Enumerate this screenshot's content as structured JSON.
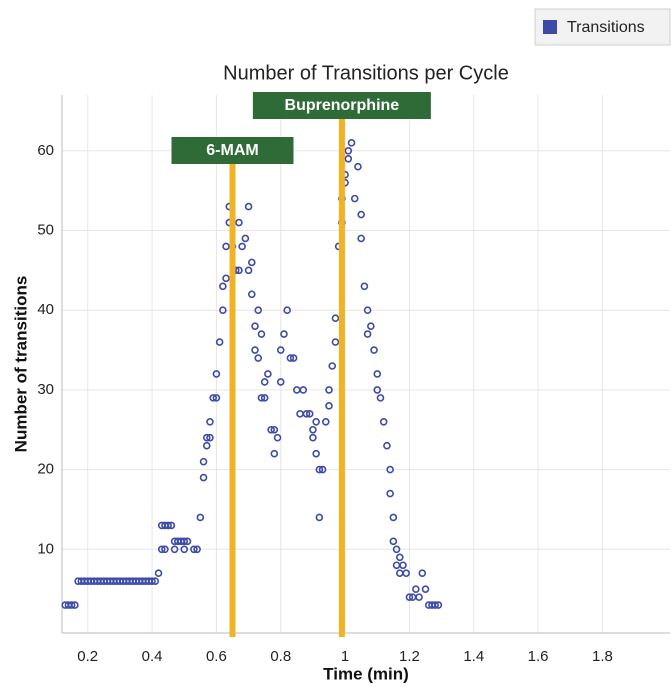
{
  "chart_data": {
    "type": "scatter",
    "title": "Number of Transitions per Cycle",
    "x_label": "Time (min)",
    "y_label": "Number of transitions",
    "x": [
      0.13,
      0.14,
      0.15,
      0.16,
      0.17,
      0.18,
      0.19,
      0.2,
      0.21,
      0.22,
      0.23,
      0.24,
      0.25,
      0.26,
      0.27,
      0.28,
      0.29,
      0.3,
      0.31,
      0.32,
      0.33,
      0.34,
      0.35,
      0.36,
      0.37,
      0.38,
      0.39,
      0.4,
      0.41,
      0.42,
      0.43,
      0.44,
      0.45,
      0.46,
      0.43,
      0.44,
      0.47,
      0.48,
      0.49,
      0.5,
      0.51,
      0.47,
      0.5,
      0.53,
      0.54,
      0.55,
      0.56,
      0.56,
      0.57,
      0.57,
      0.58,
      0.58,
      0.59,
      0.6,
      0.6,
      0.61,
      0.62,
      0.62,
      0.63,
      0.63,
      0.64,
      0.64,
      0.65,
      0.66,
      0.67,
      0.67,
      0.68,
      0.69,
      0.7,
      0.7,
      0.71,
      0.71,
      0.72,
      0.72,
      0.73,
      0.73,
      0.74,
      0.74,
      0.75,
      0.75,
      0.76,
      0.77,
      0.78,
      0.78,
      0.79,
      0.8,
      0.8,
      0.81,
      0.82,
      0.83,
      0.84,
      0.85,
      0.86,
      0.87,
      0.88,
      0.89,
      0.9,
      0.9,
      0.91,
      0.91,
      0.92,
      0.92,
      0.93,
      0.94,
      0.95,
      0.95,
      0.96,
      0.97,
      0.97,
      0.98,
      0.99,
      0.99,
      1.0,
      1.0,
      1.01,
      1.02,
      1.01,
      1.03,
      1.04,
      1.05,
      1.05,
      1.06,
      1.07,
      1.07,
      1.08,
      1.09,
      1.1,
      1.1,
      1.11,
      1.12,
      1.13,
      1.14,
      1.14,
      1.15,
      1.15,
      1.16,
      1.16,
      1.17,
      1.17,
      1.18,
      1.19,
      1.2,
      1.21,
      1.22,
      1.23,
      1.24,
      1.25,
      1.26,
      1.27,
      1.28,
      1.29
    ],
    "series": [
      {
        "name": "Transitions",
        "color": "#3d4ba6",
        "values": [
          3,
          3,
          3,
          3,
          6,
          6,
          6,
          6,
          6,
          6,
          6,
          6,
          6,
          6,
          6,
          6,
          6,
          6,
          6,
          6,
          6,
          6,
          6,
          6,
          6,
          6,
          6,
          6,
          6,
          7,
          13,
          13,
          13,
          13,
          10,
          10,
          11,
          11,
          11,
          11,
          11,
          10,
          10,
          10,
          10,
          14,
          19,
          21,
          24,
          23,
          24,
          26,
          29,
          29,
          32,
          36,
          40,
          43,
          44,
          48,
          53,
          51,
          48,
          45,
          51,
          45,
          48,
          49,
          53,
          45,
          46,
          42,
          38,
          35,
          34,
          40,
          37,
          29,
          31,
          29,
          32,
          25,
          25,
          22,
          24,
          35,
          31,
          37,
          40,
          34,
          34,
          30,
          27,
          30,
          27,
          27,
          25,
          24,
          26,
          22,
          20,
          14,
          20,
          26,
          30,
          28,
          33,
          36,
          39,
          48,
          51,
          54,
          57,
          56,
          60,
          61,
          59,
          54,
          58,
          52,
          49,
          43,
          40,
          37,
          38,
          35,
          32,
          30,
          29,
          26,
          23,
          20,
          17,
          14,
          11,
          10,
          8,
          9,
          7,
          8,
          7,
          4,
          4,
          5,
          4,
          7,
          5,
          3,
          3,
          3,
          3
        ]
      }
    ],
    "annotations": [
      {
        "text": "6-MAM",
        "x": 0.65
      },
      {
        "text": "Buprenorphine",
        "x": 0.99
      }
    ],
    "xlim": [
      0.12,
      2.01
    ],
    "ylim": [
      -0.5,
      67
    ],
    "xticks": [
      0.2,
      0.4,
      0.6,
      0.8,
      1,
      1.2,
      1.4,
      1.6,
      1.8
    ],
    "yticks": [
      10,
      20,
      30,
      40,
      50,
      60
    ],
    "grid": true
  }
}
